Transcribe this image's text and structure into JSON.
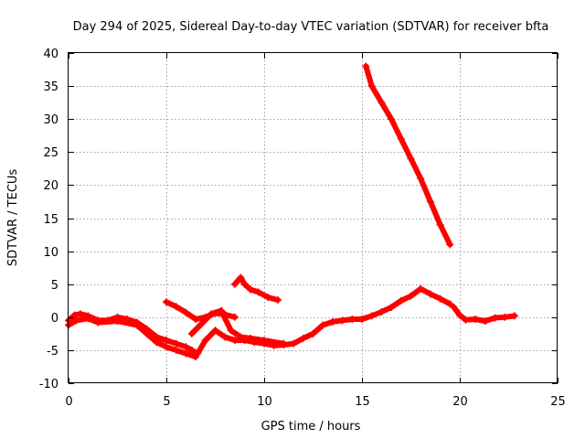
{
  "chart_data": {
    "type": "scatter",
    "title": "Day 294 of 2025, Sidereal Day-to-day VTEC variation (SDTVAR) for receiver bfta",
    "xlabel": "GPS time / hours",
    "ylabel": "SDTVAR / TECUs",
    "xlim": [
      0,
      25
    ],
    "ylim": [
      -10,
      40
    ],
    "xticks": [
      "0",
      "5",
      "10",
      "15",
      "20",
      "25"
    ],
    "yticks": [
      "-10",
      "-5",
      "0",
      "5",
      "10",
      "15",
      "20",
      "25",
      "30",
      "35",
      "40"
    ],
    "grid": true,
    "marker": "plus",
    "color": "#ff0000",
    "series": [
      {
        "name": "main-trace",
        "x": [
          0.0,
          0.3,
          0.6,
          1.0,
          1.5,
          2.0,
          2.5,
          3.0,
          3.5,
          4.0,
          4.5,
          5.0,
          5.5,
          6.0,
          6.3,
          6.6,
          7.0,
          7.5,
          8.0,
          8.5,
          9.0,
          9.5,
          10.0,
          10.5,
          11.0,
          11.5,
          12.0,
          12.5,
          13.0,
          13.5,
          14.0,
          14.5,
          15.0,
          15.5,
          16.0,
          16.5,
          17.0,
          17.5,
          18.0,
          18.5,
          19.0,
          19.5
        ],
        "y": [
          -0.5,
          0.3,
          0.5,
          0.2,
          -0.5,
          -0.5,
          0.0,
          -0.3,
          -0.8,
          -1.8,
          -3.0,
          -3.5,
          -4.0,
          -4.5,
          -5.0,
          -5.5,
          -3.5,
          -2.0,
          -3.0,
          -3.5,
          -3.5,
          -3.8,
          -4.0,
          -4.3,
          -4.2,
          -4.0,
          -3.2,
          -2.5,
          -1.2,
          -0.7,
          -0.5,
          -0.3,
          -0.3,
          0.2,
          0.8,
          1.5,
          2.5,
          3.2,
          4.3,
          3.5,
          2.8,
          2.0
        ]
      },
      {
        "name": "lower-band",
        "x": [
          0.0,
          0.4,
          1.0,
          1.5,
          2.5,
          3.5,
          4.0,
          4.5,
          5.0,
          5.5,
          6.0,
          6.5
        ],
        "y": [
          -1.2,
          -0.5,
          -0.2,
          -0.8,
          -0.6,
          -1.2,
          -2.5,
          -3.8,
          -4.5,
          -5.0,
          -5.5,
          -6.0
        ]
      },
      {
        "name": "hump-5-7",
        "x": [
          5.0,
          5.5,
          6.0,
          6.5,
          7.0,
          7.5,
          8.0,
          8.5
        ],
        "y": [
          2.3,
          1.6,
          0.7,
          -0.3,
          0.0,
          0.6,
          0.4,
          0.0
        ]
      },
      {
        "name": "crossing-6-8",
        "x": [
          6.3,
          6.8,
          7.3,
          7.8,
          8.3,
          8.8,
          9.3,
          10.0,
          11.0
        ],
        "y": [
          -2.5,
          -1.0,
          0.5,
          1.0,
          -2.0,
          -3.0,
          -3.2,
          -3.5,
          -4.0
        ]
      },
      {
        "name": "hump-9",
        "x": [
          8.5,
          8.8,
          9.0,
          9.3,
          9.7,
          10.2,
          10.7
        ],
        "y": [
          5.0,
          6.0,
          5.0,
          4.2,
          3.8,
          3.0,
          2.6
        ]
      },
      {
        "name": "steep-decline",
        "x": [
          15.2,
          15.5,
          16.0,
          16.5,
          17.0,
          17.5,
          18.0,
          18.5,
          19.0,
          19.5
        ],
        "y": [
          38.0,
          35.0,
          32.5,
          30.0,
          27.0,
          24.0,
          21.0,
          17.5,
          14.0,
          11.0
        ]
      },
      {
        "name": "tail-20-23",
        "x": [
          19.7,
          20.0,
          20.3,
          20.8,
          21.3,
          21.8,
          22.3,
          22.8
        ],
        "y": [
          1.5,
          0.3,
          -0.4,
          -0.3,
          -0.6,
          -0.1,
          0.0,
          0.2
        ]
      }
    ]
  }
}
